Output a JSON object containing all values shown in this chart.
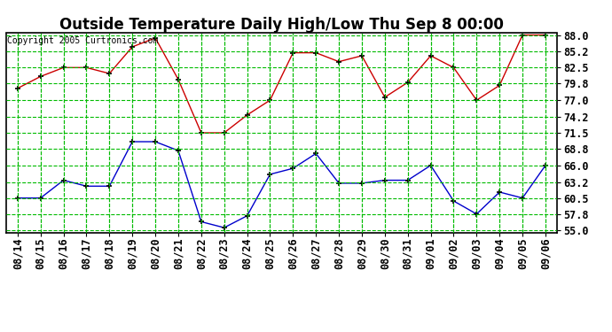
{
  "title": "Outside Temperature Daily High/Low Thu Sep 8 00:00",
  "copyright": "Copyright 2005 Curtronics.com",
  "x_labels": [
    "08/14",
    "08/15",
    "08/16",
    "08/17",
    "08/18",
    "08/19",
    "08/20",
    "08/21",
    "08/22",
    "08/23",
    "08/24",
    "08/25",
    "08/26",
    "08/27",
    "08/28",
    "08/29",
    "08/30",
    "08/31",
    "09/01",
    "09/02",
    "09/03",
    "09/04",
    "09/05",
    "09/06"
  ],
  "high_temps": [
    79.0,
    81.0,
    82.5,
    82.5,
    81.5,
    86.0,
    87.5,
    80.5,
    71.5,
    71.5,
    74.5,
    77.0,
    85.0,
    85.0,
    83.5,
    84.5,
    77.5,
    80.0,
    84.5,
    82.5,
    77.0,
    79.5,
    88.0,
    88.0
  ],
  "low_temps": [
    60.5,
    60.5,
    63.5,
    62.5,
    62.5,
    70.0,
    70.0,
    68.5,
    56.5,
    55.5,
    57.5,
    64.5,
    65.5,
    68.0,
    63.0,
    63.0,
    63.5,
    63.5,
    66.0,
    60.0,
    57.8,
    61.5,
    60.5,
    66.0
  ],
  "high_color": "#cc0000",
  "low_color": "#0000cc",
  "bg_color": "#ffffff",
  "plot_bg_color": "#ffffff",
  "grid_color": "#00bb00",
  "border_color": "#000000",
  "y_min": 55.0,
  "y_max": 88.0,
  "y_ticks": [
    55.0,
    57.8,
    60.5,
    63.2,
    66.0,
    68.8,
    71.5,
    74.2,
    77.0,
    79.8,
    82.5,
    85.2,
    88.0
  ],
  "title_fontsize": 12,
  "tick_fontsize": 8.5
}
